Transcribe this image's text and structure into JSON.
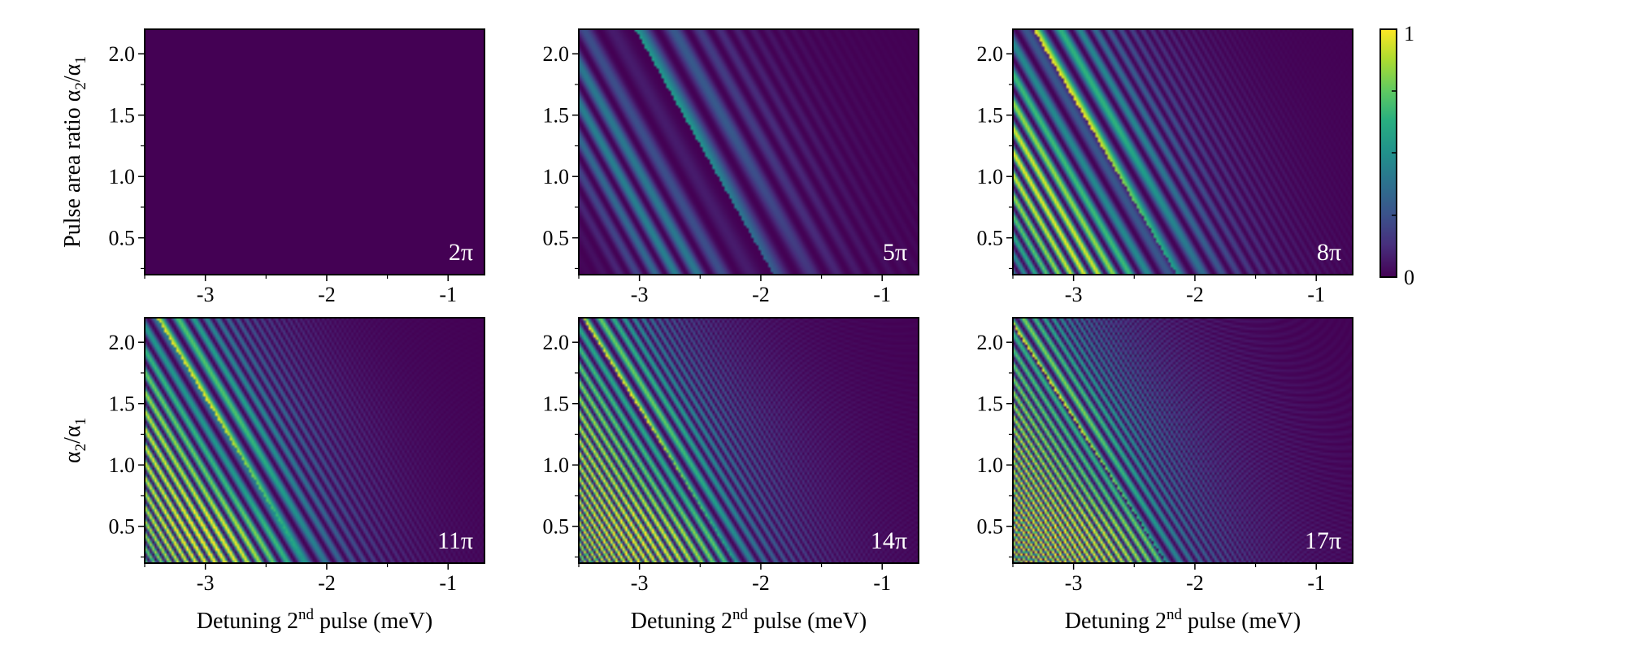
{
  "chart_data": {
    "type": "heatmap",
    "colormap": "viridis",
    "colorbar": {
      "min": 0,
      "max": 1,
      "tick_labels": [
        "1",
        "0"
      ]
    },
    "panels": [
      {
        "label": "2π",
        "area_pi": 2,
        "ylabel_main": "Pulse area ratio α",
        "ylabel_sub1": "2",
        "ylabel_mid": "/α",
        "ylabel_sub2": "1"
      },
      {
        "label": "5π",
        "area_pi": 5
      },
      {
        "label": "8π",
        "area_pi": 8
      },
      {
        "label": "11π",
        "area_pi": 11,
        "ylabel_main": "α",
        "ylabel_sub1": "2",
        "ylabel_mid": "/α",
        "ylabel_sub2": "1",
        "xlabel_pre": "Detuning 2",
        "xlabel_sup": "nd",
        "xlabel_post": " pulse (meV)"
      },
      {
        "label": "14π",
        "area_pi": 14,
        "xlabel_pre": "Detuning 2",
        "xlabel_sup": "nd",
        "xlabel_post": " pulse (meV)"
      },
      {
        "label": "17π",
        "area_pi": 17,
        "xlabel_pre": "Detuning  2",
        "xlabel_sup": "nd",
        "xlabel_post": " pulse (meV)"
      }
    ],
    "x_axis": {
      "range": [
        -3.5,
        -0.7
      ],
      "ticks": [
        -3,
        -2,
        -1
      ],
      "tick_labels": [
        "-3",
        "-2",
        "-1"
      ]
    },
    "y_axis": {
      "range": [
        0.2,
        2.2
      ],
      "ticks": [
        0.5,
        1.0,
        1.5,
        2.0
      ],
      "tick_labels": [
        "0.5",
        "1.0",
        "1.5",
        "2.0"
      ]
    }
  }
}
